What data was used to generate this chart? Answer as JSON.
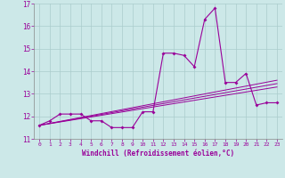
{
  "xlabel": "Windchill (Refroidissement éolien,°C)",
  "background_color": "#cce8e8",
  "line_color": "#990099",
  "grid_color": "#aacccc",
  "xlim": [
    -0.5,
    23.5
  ],
  "ylim": [
    11,
    17
  ],
  "xticks": [
    0,
    1,
    2,
    3,
    4,
    5,
    6,
    7,
    8,
    9,
    10,
    11,
    12,
    13,
    14,
    15,
    16,
    17,
    18,
    19,
    20,
    21,
    22,
    23
  ],
  "yticks": [
    11,
    12,
    13,
    14,
    15,
    16,
    17
  ],
  "x": [
    0,
    1,
    2,
    3,
    4,
    5,
    6,
    7,
    8,
    9,
    10,
    11,
    12,
    13,
    14,
    15,
    16,
    17,
    18,
    19,
    20,
    21,
    22,
    23
  ],
  "y_main": [
    11.6,
    11.8,
    12.1,
    12.1,
    12.1,
    11.8,
    11.8,
    11.5,
    11.5,
    11.5,
    12.2,
    12.2,
    14.8,
    14.8,
    14.7,
    14.2,
    16.3,
    16.8,
    13.5,
    13.5,
    13.9,
    12.5,
    12.6,
    12.6
  ],
  "trend_x": [
    0,
    23
  ],
  "trend_lines": [
    [
      11.6,
      13.6
    ],
    [
      11.6,
      13.45
    ],
    [
      11.6,
      13.3
    ]
  ]
}
